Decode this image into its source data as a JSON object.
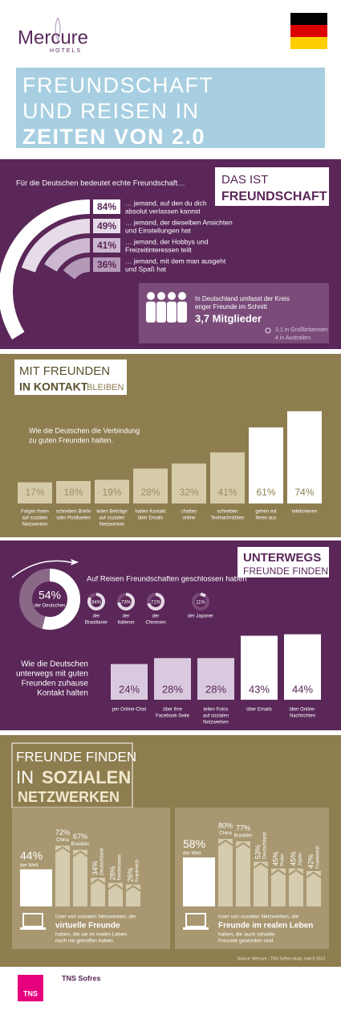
{
  "header": {
    "brand": "Mercure",
    "brand_sub": "HOTELS",
    "title_lines": [
      "FREUNDSCHAFT",
      "UND REISEN IN",
      "ZEITEN VON 2.0"
    ]
  },
  "friendship": {
    "intro": "Für die Deutschen bedeutet echte Freundschaft…",
    "heading": [
      "DAS IST",
      "FREUNDSCHAFT"
    ],
    "items": [
      {
        "value": 84,
        "label": "84%",
        "text": [
          "… jemand, auf den du dich",
          "absolut verlassen kannst"
        ]
      },
      {
        "value": 49,
        "label": "49%",
        "text": [
          "… jemand, der dieselben Ansichten",
          "und Einstellungen hat"
        ]
      },
      {
        "value": 41,
        "label": "41%",
        "text": [
          "… jemand, der Hobbys und",
          "Freizeitinteressen teilt"
        ]
      },
      {
        "value": 36,
        "label": "36%",
        "text": [
          "… jemand, mit dem man ausgeht",
          "und Spaß hat"
        ]
      }
    ],
    "circle": {
      "lines": [
        "In Deutschland umfasst der Kreis",
        "enger Freunde im Schnitt"
      ],
      "highlight": "3,7 Mitglieder",
      "comparisons": [
        "3,1 in Großbritannien",
        "4 in Australien"
      ]
    }
  },
  "contact": {
    "heading": [
      "MIT FREUNDEN",
      "IN KONTAKT",
      "BLEIBEN"
    ],
    "intro": [
      "Wie die Deutschen die Verbindung",
      "zu guten Freunden halten."
    ],
    "items": [
      {
        "value": 17,
        "label": "17%",
        "text": [
          "Folgen ihnen",
          "auf sozialen",
          "Netzwerken"
        ]
      },
      {
        "value": 18,
        "label": "18%",
        "text": [
          "schreiben Briefe",
          "oder Postkarten"
        ]
      },
      {
        "value": 19,
        "label": "19%",
        "text": [
          "teilen Beiträge",
          "auf sozialen",
          "Netzwerken"
        ]
      },
      {
        "value": 28,
        "label": "28%",
        "text": [
          "halten Kontakt",
          "über Emails"
        ]
      },
      {
        "value": 32,
        "label": "32%",
        "text": [
          "chatten",
          "online"
        ]
      },
      {
        "value": 41,
        "label": "41%",
        "text": [
          "schreiben",
          "Textnachrichten"
        ]
      },
      {
        "value": 61,
        "label": "61%",
        "text": [
          "gehen mit",
          "ihnen aus"
        ]
      },
      {
        "value": 74,
        "label": "74%",
        "text": [
          "telefonieren"
        ]
      }
    ]
  },
  "travel": {
    "heading": [
      "UNTERWEGS",
      "FREUNDE FINDEN"
    ],
    "donut": {
      "value": 54,
      "label": "54%",
      "text": "der Deutschen"
    },
    "intro": "Auf Reisen Freundschaften geschlossen haben",
    "others": [
      {
        "value": 84,
        "label": "84%",
        "text": [
          "der",
          "Brasilianer"
        ]
      },
      {
        "value": 73,
        "label": "73%",
        "text": [
          "der",
          "Italiener"
        ]
      },
      {
        "value": 71,
        "label": "71%",
        "text": [
          "der",
          "Chinesen"
        ]
      },
      {
        "value": 11,
        "label": "11%",
        "text": [
          "der Japaner"
        ]
      }
    ],
    "contact_intro": [
      "Wie die Deutschen",
      "unterwegs mit guten",
      "Freunden zuhause",
      "Kontakt halten"
    ],
    "items": [
      {
        "value": 24,
        "label": "24%",
        "text": [
          "per Online-Chat"
        ]
      },
      {
        "value": 28,
        "label": "28%",
        "text": [
          "über ihre",
          "Facebook-Seite"
        ]
      },
      {
        "value": 28,
        "label": "28%",
        "text": [
          "teilen Fotos",
          "auf sozialen",
          "Netzwerken"
        ]
      },
      {
        "value": 43,
        "label": "43%",
        "text": [
          "über Emails"
        ]
      },
      {
        "value": 44,
        "label": "44%",
        "text": [
          "über Online-",
          "Nachrichten"
        ]
      }
    ]
  },
  "social": {
    "heading": [
      "FREUNDE FINDEN",
      "IN",
      "SOZIALEN",
      "NETZWERKEN"
    ],
    "panels": [
      {
        "items": [
          {
            "value": 44,
            "label": "44%",
            "text": "der Welt"
          },
          {
            "value": 72,
            "label": "72%",
            "text": "China"
          },
          {
            "value": 67,
            "label": "67%",
            "text": "Brasilien"
          },
          {
            "value": 34,
            "label": "34%",
            "text": "Deutschland"
          },
          {
            "value": 28,
            "label": "28%",
            "text": "Niederlande"
          },
          {
            "value": 26,
            "label": "26%",
            "text": "Frankreich"
          }
        ],
        "caption": "User von sozialen Netzwerken, die",
        "highlight": "virtuelle Freunde",
        "caption_after": [
          "haben, die sie im realen Leben",
          "noch nie getroffen haben"
        ]
      },
      {
        "items": [
          {
            "value": 58,
            "label": "58%",
            "text": "der Welt"
          },
          {
            "value": 80,
            "label": "80%",
            "text": "China"
          },
          {
            "value": 77,
            "label": "77%",
            "text": "Brasilien"
          },
          {
            "value": 53,
            "label": "53%",
            "text": "Deutschland"
          },
          {
            "value": 45,
            "label": "45%",
            "text": "Polen"
          },
          {
            "value": 45,
            "label": "45%",
            "text": "Japan"
          },
          {
            "value": 42,
            "label": "42%",
            "text": "Frankreich"
          }
        ],
        "caption": "User von sozialen Netzwerken, die",
        "highlight": "Freunde im realen Leben",
        "caption_after": [
          "haben, die auch virtuelle",
          "Freunde geworden sind"
        ]
      }
    ],
    "source": "Source: Mercure - TNS Sofres study, march 2013"
  },
  "footer": {
    "logo": "TNS",
    "brand": "TNS Sofres"
  }
}
